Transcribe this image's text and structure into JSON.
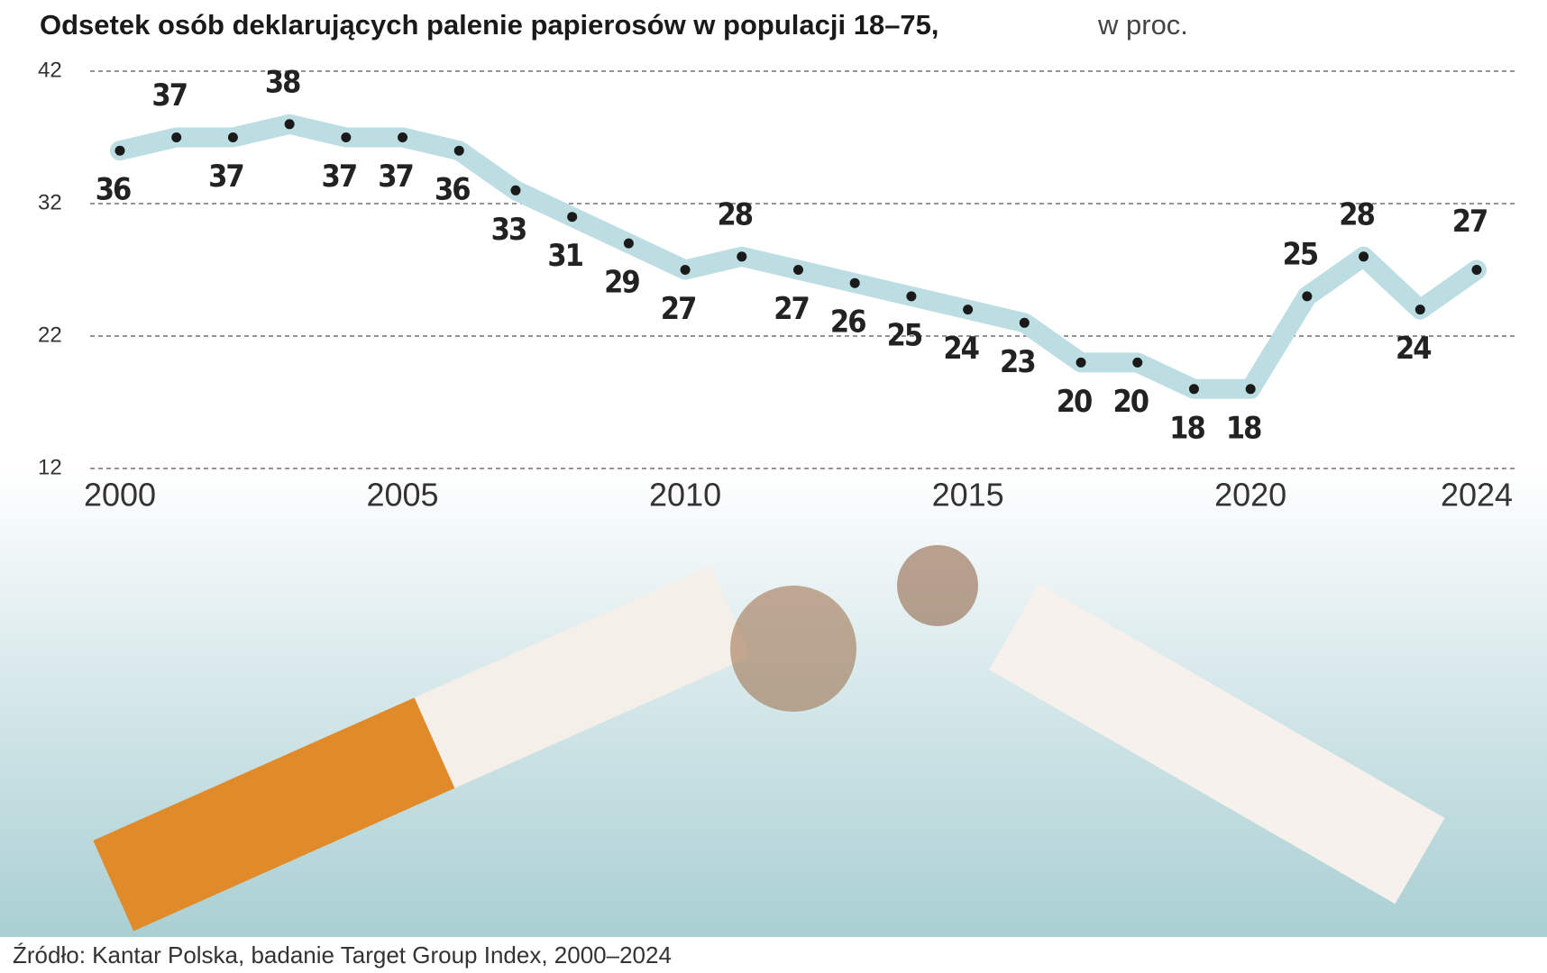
{
  "chart_data": {
    "type": "line",
    "title": "Odsetek osób deklarujących palenie papierosów w populacji 18–75,",
    "subtitle": "w proc.",
    "source": "Źródło: Kantar Polska, badanie Target Group Index, 2000–2024",
    "x": [
      2000,
      2001,
      2002,
      2003,
      2004,
      2005,
      2006,
      2007,
      2008,
      2009,
      2010,
      2011,
      2012,
      2013,
      2014,
      2015,
      2016,
      2017,
      2018,
      2019,
      2020,
      2021,
      2022,
      2023,
      2024
    ],
    "series": [
      {
        "color": "#bcdde2",
        "values": [
          36,
          37,
          37,
          38,
          37,
          37,
          36,
          33,
          31,
          29,
          27,
          28,
          27,
          26,
          25,
          24,
          23,
          20,
          20,
          18,
          18,
          25,
          28,
          24,
          27
        ]
      }
    ],
    "xlim": [
      2000,
      2024
    ],
    "xticks": [
      2000,
      2005,
      2010,
      2015,
      2020,
      2024
    ],
    "ylim": [
      12,
      42
    ],
    "yticks": [
      12,
      22,
      32,
      42
    ],
    "grid": true
  }
}
